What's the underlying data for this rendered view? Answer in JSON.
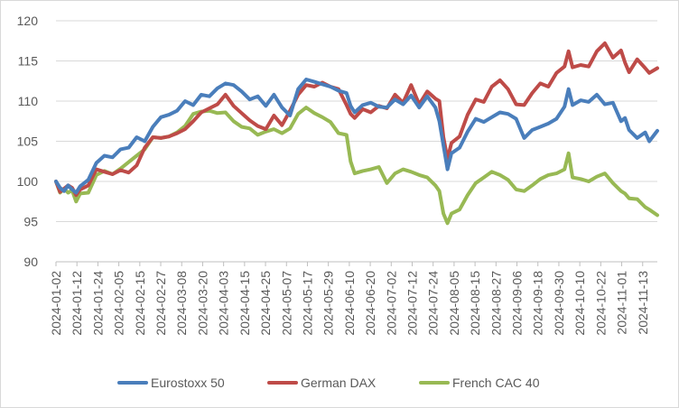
{
  "chart_data": {
    "type": "line",
    "title": "",
    "xlabel": "",
    "ylabel": "",
    "ylim": [
      90,
      120
    ],
    "y_ticks": [
      "90",
      "95",
      "100",
      "105",
      "110",
      "115",
      "120"
    ],
    "x_labels": [
      "2024-01-02",
      "2024-01-12",
      "2024-01-24",
      "2024-02-05",
      "2024-02-15",
      "2024-02-27",
      "2024-03-08",
      "2024-03-20",
      "2024-04-03",
      "2024-04-15",
      "2024-04-25",
      "2024-05-07",
      "2024-05-17",
      "2024-05-29",
      "2024-06-10",
      "2024-06-20",
      "2024-07-02",
      "2024-07-12",
      "2024-07-24",
      "2024-08-05",
      "2024-08-15",
      "2024-08-27",
      "2024-09-06",
      "2024-09-18",
      "2024-09-30",
      "2024-10-10",
      "2024-10-22",
      "2024-11-01",
      "2024-11-13"
    ],
    "grid": "horizontal",
    "legend_position": "bottom",
    "series": [
      {
        "name": "Eurostoxx 50",
        "color": "#4a7ebb",
        "points": [
          [
            0,
            100
          ],
          [
            1,
            99.2
          ],
          [
            2,
            98.8
          ],
          [
            3,
            99.5
          ],
          [
            4,
            99.0
          ],
          [
            5,
            98.6
          ],
          [
            6,
            99.4
          ],
          [
            8,
            100.2
          ],
          [
            10,
            102.3
          ],
          [
            12,
            103.2
          ],
          [
            14,
            103.0
          ],
          [
            16,
            104.0
          ],
          [
            18,
            104.2
          ],
          [
            20,
            105.5
          ],
          [
            22,
            105.0
          ],
          [
            24,
            106.8
          ],
          [
            26,
            108.0
          ],
          [
            28,
            108.3
          ],
          [
            30,
            108.8
          ],
          [
            32,
            110.0
          ],
          [
            34,
            109.5
          ],
          [
            36,
            110.8
          ],
          [
            38,
            110.6
          ],
          [
            40,
            111.6
          ],
          [
            42,
            112.2
          ],
          [
            44,
            112.0
          ],
          [
            46,
            111.2
          ],
          [
            48,
            110.2
          ],
          [
            50,
            110.6
          ],
          [
            52,
            109.4
          ],
          [
            54,
            110.8
          ],
          [
            56,
            109.2
          ],
          [
            58,
            108.2
          ],
          [
            60,
            111.5
          ],
          [
            62,
            112.7
          ],
          [
            64,
            112.4
          ],
          [
            66,
            112.1
          ],
          [
            68,
            111.8
          ],
          [
            70,
            111.3
          ],
          [
            72,
            111.0
          ],
          [
            73,
            109.4
          ],
          [
            74,
            108.6
          ],
          [
            76,
            109.5
          ],
          [
            78,
            109.8
          ],
          [
            80,
            109.3
          ],
          [
            82,
            109.2
          ],
          [
            84,
            110.2
          ],
          [
            86,
            109.6
          ],
          [
            88,
            110.7
          ],
          [
            90,
            109.2
          ],
          [
            92,
            110.6
          ],
          [
            94,
            109.2
          ],
          [
            95,
            107.5
          ],
          [
            96,
            104.5
          ],
          [
            97,
            101.5
          ],
          [
            98,
            103.5
          ],
          [
            100,
            104.2
          ],
          [
            102,
            106.2
          ],
          [
            104,
            107.8
          ],
          [
            106,
            107.4
          ],
          [
            108,
            108.0
          ],
          [
            110,
            108.6
          ],
          [
            112,
            108.4
          ],
          [
            114,
            107.8
          ],
          [
            116,
            105.4
          ],
          [
            118,
            106.4
          ],
          [
            120,
            106.8
          ],
          [
            122,
            107.2
          ],
          [
            124,
            107.8
          ],
          [
            126,
            109.3
          ],
          [
            127,
            111.5
          ],
          [
            128,
            109.5
          ],
          [
            130,
            110.1
          ],
          [
            132,
            109.9
          ],
          [
            134,
            110.8
          ],
          [
            136,
            109.6
          ],
          [
            138,
            109.8
          ],
          [
            140,
            107.5
          ],
          [
            141,
            107.9
          ],
          [
            142,
            106.4
          ],
          [
            144,
            105.4
          ],
          [
            146,
            106.1
          ],
          [
            147,
            105.0
          ],
          [
            149,
            106.3
          ]
        ]
      },
      {
        "name": "German DAX",
        "color": "#be4b48",
        "points": [
          [
            0,
            100
          ],
          [
            1,
            98.7
          ],
          [
            2,
            99.1
          ],
          [
            3,
            99.5
          ],
          [
            4,
            99.2
          ],
          [
            5,
            98.3
          ],
          [
            6,
            99.0
          ],
          [
            8,
            99.5
          ],
          [
            10,
            101.5
          ],
          [
            12,
            101.2
          ],
          [
            14,
            100.9
          ],
          [
            16,
            101.4
          ],
          [
            18,
            101.1
          ],
          [
            20,
            102.0
          ],
          [
            22,
            104.2
          ],
          [
            24,
            105.5
          ],
          [
            26,
            105.4
          ],
          [
            28,
            105.6
          ],
          [
            30,
            106.0
          ],
          [
            32,
            106.5
          ],
          [
            34,
            107.5
          ],
          [
            36,
            108.6
          ],
          [
            38,
            109.1
          ],
          [
            40,
            109.6
          ],
          [
            42,
            110.8
          ],
          [
            44,
            109.4
          ],
          [
            46,
            108.5
          ],
          [
            48,
            107.6
          ],
          [
            50,
            106.9
          ],
          [
            52,
            106.5
          ],
          [
            54,
            108.2
          ],
          [
            56,
            107.0
          ],
          [
            58,
            108.8
          ],
          [
            60,
            110.8
          ],
          [
            62,
            112.0
          ],
          [
            64,
            111.8
          ],
          [
            66,
            112.3
          ],
          [
            68,
            111.8
          ],
          [
            70,
            111.5
          ],
          [
            72,
            109.5
          ],
          [
            73,
            108.4
          ],
          [
            74,
            107.9
          ],
          [
            76,
            109.0
          ],
          [
            78,
            108.6
          ],
          [
            80,
            109.4
          ],
          [
            82,
            109.1
          ],
          [
            84,
            110.8
          ],
          [
            86,
            109.8
          ],
          [
            88,
            112.0
          ],
          [
            90,
            109.6
          ],
          [
            92,
            111.2
          ],
          [
            94,
            110.3
          ],
          [
            95,
            110.0
          ],
          [
            96,
            105.5
          ],
          [
            97,
            102.8
          ],
          [
            98,
            104.8
          ],
          [
            100,
            105.6
          ],
          [
            102,
            108.3
          ],
          [
            104,
            110.2
          ],
          [
            106,
            109.9
          ],
          [
            108,
            111.8
          ],
          [
            110,
            112.6
          ],
          [
            112,
            111.5
          ],
          [
            114,
            109.6
          ],
          [
            116,
            109.5
          ],
          [
            118,
            111.0
          ],
          [
            120,
            112.2
          ],
          [
            122,
            111.8
          ],
          [
            124,
            113.5
          ],
          [
            126,
            114.3
          ],
          [
            127,
            116.2
          ],
          [
            128,
            114.2
          ],
          [
            130,
            114.5
          ],
          [
            132,
            114.3
          ],
          [
            134,
            116.2
          ],
          [
            136,
            117.2
          ],
          [
            138,
            115.4
          ],
          [
            140,
            116.3
          ],
          [
            141,
            114.8
          ],
          [
            142,
            113.6
          ],
          [
            144,
            115.2
          ],
          [
            146,
            114.1
          ],
          [
            147,
            113.5
          ],
          [
            149,
            114.1
          ]
        ]
      },
      {
        "name": "French CAC 40",
        "color": "#98b954",
        "points": [
          [
            0,
            100
          ],
          [
            1,
            98.6
          ],
          [
            2,
            99.1
          ],
          [
            3,
            98.6
          ],
          [
            4,
            98.9
          ],
          [
            5,
            97.5
          ],
          [
            6,
            98.5
          ],
          [
            8,
            98.6
          ],
          [
            10,
            100.8
          ],
          [
            12,
            101.3
          ],
          [
            14,
            100.9
          ],
          [
            16,
            101.6
          ],
          [
            18,
            102.4
          ],
          [
            20,
            103.2
          ],
          [
            22,
            104.0
          ],
          [
            24,
            105.5
          ],
          [
            26,
            105.4
          ],
          [
            28,
            105.6
          ],
          [
            30,
            106.1
          ],
          [
            32,
            106.9
          ],
          [
            34,
            108.4
          ],
          [
            36,
            108.7
          ],
          [
            38,
            108.8
          ],
          [
            40,
            108.5
          ],
          [
            42,
            108.6
          ],
          [
            44,
            107.5
          ],
          [
            46,
            106.8
          ],
          [
            48,
            106.6
          ],
          [
            50,
            105.8
          ],
          [
            52,
            106.2
          ],
          [
            54,
            106.5
          ],
          [
            56,
            106.0
          ],
          [
            58,
            106.6
          ],
          [
            60,
            108.4
          ],
          [
            62,
            109.2
          ],
          [
            64,
            108.5
          ],
          [
            66,
            108.0
          ],
          [
            68,
            107.4
          ],
          [
            70,
            106.0
          ],
          [
            72,
            105.8
          ],
          [
            73,
            102.5
          ],
          [
            74,
            101.0
          ],
          [
            76,
            101.3
          ],
          [
            78,
            101.5
          ],
          [
            80,
            101.8
          ],
          [
            82,
            99.8
          ],
          [
            84,
            101.0
          ],
          [
            86,
            101.5
          ],
          [
            88,
            101.2
          ],
          [
            90,
            100.8
          ],
          [
            92,
            100.5
          ],
          [
            94,
            99.5
          ],
          [
            95,
            98.8
          ],
          [
            96,
            96.0
          ],
          [
            97,
            94.8
          ],
          [
            98,
            96.0
          ],
          [
            100,
            96.5
          ],
          [
            102,
            98.3
          ],
          [
            104,
            99.8
          ],
          [
            106,
            100.5
          ],
          [
            108,
            101.2
          ],
          [
            110,
            100.8
          ],
          [
            112,
            100.2
          ],
          [
            114,
            99.0
          ],
          [
            116,
            98.8
          ],
          [
            118,
            99.5
          ],
          [
            120,
            100.3
          ],
          [
            122,
            100.8
          ],
          [
            124,
            101.0
          ],
          [
            126,
            101.5
          ],
          [
            127,
            103.5
          ],
          [
            128,
            100.5
          ],
          [
            130,
            100.3
          ],
          [
            132,
            100.0
          ],
          [
            134,
            100.6
          ],
          [
            136,
            101.0
          ],
          [
            138,
            99.8
          ],
          [
            140,
            98.8
          ],
          [
            141,
            98.5
          ],
          [
            142,
            97.9
          ],
          [
            144,
            97.8
          ],
          [
            146,
            96.8
          ],
          [
            147,
            96.5
          ],
          [
            149,
            95.8
          ]
        ]
      }
    ]
  }
}
